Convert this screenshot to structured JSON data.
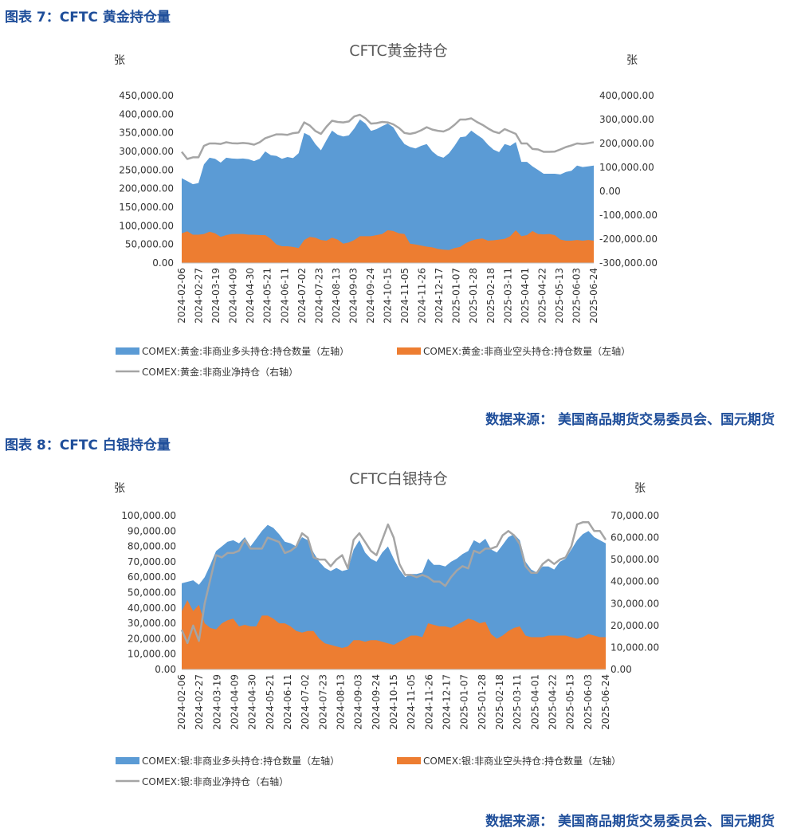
{
  "figures": [
    {
      "caption": "图表 7：CFTC 黄金持仓量",
      "source": "数据来源：  美国商品期货交易委员会、国元期货"
    },
    {
      "caption": "图表 8：CFTC 白银持仓量",
      "source": "数据来源：  美国商品期货交易委员会、国元期货"
    }
  ],
  "colors": {
    "long": "#5b9bd5",
    "short": "#ed7d31",
    "net": "#a5a5a5",
    "caption": "#1f4e9a"
  },
  "chart_data": [
    {
      "type": "area",
      "title": "CFTC黄金持仓",
      "ylabel_left": "张",
      "ylabel_right": "张",
      "ylim_left": [
        0,
        450000
      ],
      "ylim_right": [
        -300000,
        400000
      ],
      "yticks_left": [
        "450,000.00",
        "400,000.00",
        "350,000.00",
        "300,000.00",
        "250,000.00",
        "200,000.00",
        "150,000.00",
        "100,000.00",
        "50,000.00",
        "0.00"
      ],
      "yticks_right": [
        "400,000.00",
        "300,000.00",
        "200,000.00",
        "100,000.00",
        "0.00",
        "-100,000.00",
        "-200,000.00",
        "-300,000.00"
      ],
      "x_tick_labels": [
        "2024-02-06",
        "2024-02-27",
        "2024-03-19",
        "2024-04-09",
        "2024-04-30",
        "2024-05-21",
        "2024-06-11",
        "2024-07-02",
        "2024-07-23",
        "2024-08-13",
        "2024-09-03",
        "2024-09-24",
        "2024-10-15",
        "2024-11-05",
        "2024-11-26",
        "2024-12-17",
        "2025-01-07",
        "2025-01-28",
        "2025-02-18",
        "2025-03-11",
        "2025-04-01",
        "2025-04-22",
        "2025-05-13",
        "2025-06-03",
        "2025-06-24"
      ],
      "legend": [
        "COMEX:黄金:非商业多头持仓:持仓数量（左轴）",
        "COMEX:黄金:非商业空头持仓:持仓数量（左轴）",
        "COMEX:黄金:非商业净持仓（右轴）"
      ],
      "series": [
        {
          "name": "COMEX:黄金:非商业多头持仓:持仓数量（左轴）",
          "axis": "left",
          "values": [
            228000,
            220000,
            212000,
            215000,
            265000,
            283000,
            280000,
            270000,
            283000,
            281000,
            280000,
            281000,
            279000,
            274000,
            280000,
            300000,
            290000,
            288000,
            280000,
            285000,
            282000,
            295000,
            350000,
            342000,
            320000,
            303000,
            330000,
            356000,
            345000,
            340000,
            343000,
            362000,
            386000,
            375000,
            355000,
            360000,
            368000,
            375000,
            365000,
            340000,
            320000,
            312000,
            308000,
            315000,
            320000,
            300000,
            288000,
            283000,
            295000,
            315000,
            338000,
            340000,
            356000,
            345000,
            335000,
            318000,
            305000,
            298000,
            320000,
            315000,
            325000,
            272000,
            272000,
            260000,
            250000,
            240000,
            240000,
            240000,
            238000,
            245000,
            248000,
            262000,
            258000,
            260000,
            262000
          ]
        },
        {
          "name": "COMEX:黄金:非商业空头持仓:持仓数量（左轴）",
          "axis": "left",
          "values": [
            80000,
            85000,
            76000,
            76000,
            78000,
            84000,
            80000,
            70000,
            75000,
            78000,
            78000,
            78000,
            76000,
            76000,
            75000,
            75000,
            65000,
            50000,
            45000,
            45000,
            43000,
            40000,
            62000,
            70000,
            68000,
            62000,
            60000,
            68000,
            63000,
            52000,
            55000,
            62000,
            72000,
            72000,
            72000,
            75000,
            78000,
            88000,
            86000,
            80000,
            78000,
            52000,
            50000,
            47000,
            44000,
            42000,
            38000,
            36000,
            35000,
            40000,
            43000,
            53000,
            60000,
            64000,
            66000,
            60000,
            61000,
            63000,
            65000,
            72000,
            88000,
            72000,
            75000,
            86000,
            78000,
            77000,
            78000,
            75000,
            63000,
            60000,
            60000,
            62000,
            60000,
            62000,
            60000
          ]
        },
        {
          "name": "COMEX:黄金:非商业净持仓（右轴）",
          "axis": "right",
          "values": [
            165000,
            135000,
            142000,
            142000,
            190000,
            200000,
            200000,
            198000,
            205000,
            201000,
            200000,
            202000,
            200000,
            195000,
            205000,
            222000,
            230000,
            238000,
            238000,
            236000,
            243000,
            246000,
            288000,
            275000,
            252000,
            240000,
            270000,
            295000,
            290000,
            288000,
            292000,
            313000,
            320000,
            305000,
            283000,
            285000,
            290000,
            288000,
            280000,
            265000,
            244000,
            240000,
            245000,
            255000,
            268000,
            258000,
            253000,
            250000,
            260000,
            278000,
            300000,
            300000,
            305000,
            290000,
            278000,
            263000,
            250000,
            243000,
            260000,
            250000,
            240000,
            200000,
            200000,
            177000,
            175000,
            165000,
            165000,
            166000,
            175000,
            185000,
            192000,
            200000,
            198000,
            201000,
            205000
          ]
        }
      ]
    },
    {
      "type": "area",
      "title": "CFTC白银持仓",
      "ylabel_left": "张",
      "ylabel_right": "张",
      "ylim_left": [
        0,
        100000
      ],
      "ylim_right": [
        0,
        70000
      ],
      "yticks_left": [
        "100,000.00",
        "90,000.00",
        "80,000.00",
        "70,000.00",
        "60,000.00",
        "50,000.00",
        "40,000.00",
        "30,000.00",
        "20,000.00",
        "10,000.00",
        "0.00"
      ],
      "yticks_right": [
        "70,000.00",
        "60,000.00",
        "50,000.00",
        "40,000.00",
        "30,000.00",
        "20,000.00",
        "10,000.00",
        "0.00"
      ],
      "x_tick_labels": [
        "2024-02-06",
        "2024-02-27",
        "2024-03-19",
        "2024-04-09",
        "2024-04-30",
        "2024-05-21",
        "2024-06-11",
        "2024-07-02",
        "2024-07-23",
        "2024-08-13",
        "2024-09-03",
        "2024-09-24",
        "2024-10-15",
        "2024-11-05",
        "2024-11-26",
        "2024-12-17",
        "2025-01-07",
        "2025-01-28",
        "2025-02-18",
        "2025-03-11",
        "2025-04-01",
        "2025-04-22",
        "2025-05-13",
        "2025-06-03",
        "2025-06-24"
      ],
      "legend": [
        "COMEX:银:非商业多头持仓:持仓数量（左轴）",
        "COMEX:银:非商业空头持仓:持仓数量（左轴）",
        "COMEX:银:非商业净持仓（右轴）"
      ],
      "series": [
        {
          "name": "COMEX:银:非商业多头持仓:持仓数量（左轴）",
          "axis": "left",
          "values": [
            56000,
            57000,
            58000,
            55000,
            60000,
            68000,
            77000,
            80000,
            83000,
            84000,
            82000,
            86000,
            80000,
            85000,
            90000,
            94000,
            92000,
            88000,
            83000,
            82000,
            80000,
            86000,
            84000,
            76000,
            70000,
            66000,
            64000,
            66000,
            64000,
            65000,
            78000,
            84000,
            76000,
            72000,
            70000,
            76000,
            80000,
            72000,
            65000,
            60000,
            62000,
            62000,
            63000,
            72000,
            68000,
            68000,
            67000,
            70000,
            72000,
            75000,
            77000,
            84000,
            82000,
            85000,
            78000,
            76000,
            81000,
            86000,
            88000,
            84000,
            70000,
            65000,
            63000,
            67000,
            67000,
            65000,
            70000,
            72000,
            78000,
            84000,
            88000,
            90000,
            86000,
            84000,
            82000
          ]
        },
        {
          "name": "COMEX:银:非商业空头持仓:持仓数量（左轴）",
          "axis": "left",
          "values": [
            38000,
            45000,
            38000,
            42000,
            30000,
            27000,
            26000,
            30000,
            32000,
            33000,
            28000,
            29000,
            28000,
            28000,
            35000,
            35000,
            33000,
            30000,
            30000,
            28000,
            25000,
            24000,
            25000,
            25000,
            20000,
            17000,
            16000,
            15000,
            14000,
            15000,
            19000,
            19000,
            18000,
            19000,
            19000,
            18000,
            17000,
            16000,
            18000,
            20000,
            22000,
            22000,
            21000,
            30000,
            29000,
            28000,
            28000,
            27000,
            29000,
            31000,
            33000,
            32000,
            30000,
            31000,
            23000,
            20000,
            22000,
            25000,
            27000,
            28000,
            22000,
            21000,
            21000,
            21000,
            22000,
            22000,
            22000,
            22000,
            21000,
            20000,
            21000,
            23000,
            22000,
            21000,
            21000
          ]
        },
        {
          "name": "COMEX:银:非商业净持仓（右轴）",
          "axis": "right",
          "values": [
            18000,
            12000,
            20000,
            13000,
            30000,
            41000,
            52000,
            51000,
            53000,
            53000,
            54000,
            59000,
            55000,
            55000,
            55000,
            60000,
            59000,
            58000,
            53000,
            54000,
            56000,
            62000,
            60000,
            51000,
            50000,
            50000,
            47000,
            50000,
            52000,
            46000,
            59000,
            62000,
            58000,
            54000,
            52000,
            59000,
            66000,
            60000,
            48000,
            43000,
            43000,
            42000,
            43000,
            42000,
            40000,
            40000,
            38000,
            42000,
            45000,
            47000,
            46000,
            54000,
            53000,
            55000,
            55000,
            56000,
            61000,
            63000,
            61000,
            57000,
            47000,
            44000,
            44000,
            48000,
            50000,
            48000,
            50000,
            51000,
            56000,
            66000,
            67000,
            67000,
            63000,
            63000,
            59000
          ]
        }
      ]
    }
  ]
}
